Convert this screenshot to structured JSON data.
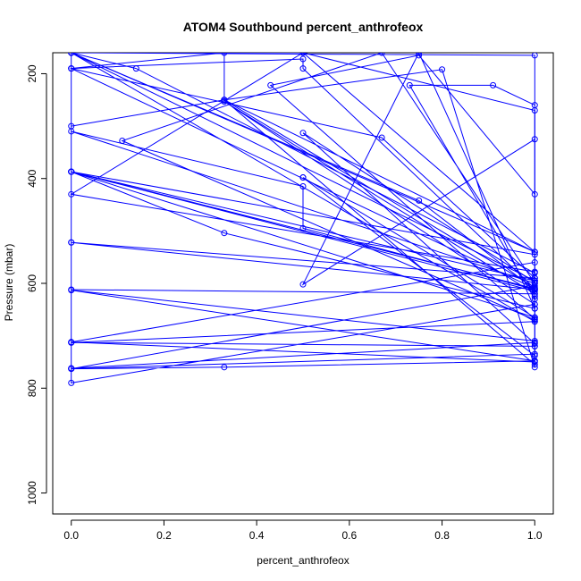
{
  "chart_data": {
    "type": "line",
    "title": "ATOM4 Southbound percent_anthrofeox",
    "xlabel": "percent_anthrofeox",
    "ylabel": "Pressure (mbar)",
    "xlim": [
      -0.04,
      1.04
    ],
    "ylim": [
      1040,
      160
    ],
    "y_reversed": true,
    "grid": false,
    "x_ticks": [
      0.0,
      0.2,
      0.4,
      0.6,
      0.8,
      1.0
    ],
    "x_tick_labels": [
      "0.0",
      "0.2",
      "0.4",
      "0.6",
      "0.8",
      "1.0"
    ],
    "y_ticks": [
      200,
      400,
      600,
      800,
      1000
    ],
    "y_tick_labels": [
      "200",
      "400",
      "600",
      "800",
      "1000"
    ],
    "color": "#0000ff",
    "series": [
      {
        "x": [
          0.0,
          0.0,
          0.33,
          0.33,
          0.0,
          1.0,
          0.5,
          0.5,
          0.0,
          0.67,
          1.0,
          1.0,
          0.0,
          0.5,
          0.5,
          1.0,
          1.0,
          0.0,
          0.33,
          1.0,
          1.0,
          0.0,
          0.0,
          1.0,
          1.0,
          0.0,
          0.0,
          1.0,
          1.0,
          0.0,
          0.0,
          1.0,
          1.0,
          0.0,
          0.5,
          1.0,
          1.0,
          0.0,
          0.0,
          1.0,
          1.0,
          0.0,
          0.0,
          1.0,
          1.0,
          0.0,
          0.0,
          0.33,
          1.0,
          1.0,
          0.0,
          0.0,
          1.0,
          1.0,
          0.0,
          0.0,
          1.0,
          1.0,
          0.33,
          0.33,
          1.0,
          1.0,
          0.0,
          0.0,
          1.0,
          1.0,
          0.0,
          0.14,
          1.0,
          1.0
        ],
        "y": [
          190,
          300,
          250,
          160,
          190,
          610,
          190,
          172,
          190,
          322,
          590,
          600,
          310,
          415,
          495,
          612,
          595,
          387,
          504,
          648,
          720,
          713,
          713,
          673,
          735,
          763,
          762,
          713,
          640,
          790,
          160,
          595,
          578,
          430,
          160,
          270,
          612,
          522,
          522,
          590,
          620,
          612,
          713,
          720,
          605,
          763,
          763,
          760,
          748,
          540,
          160,
          387,
          595,
          610,
          387,
          387,
          545,
          620,
          253,
          253,
          640,
          665,
          387,
          387,
          615,
          673,
          160,
          190,
          580,
          625
        ]
      },
      {
        "x": [
          0.0,
          0.5,
          1.0,
          1.0,
          0.0,
          1.0,
          1.0,
          0.5,
          0.5,
          1.0,
          1.0,
          0.11,
          0.67,
          1.0,
          1.0,
          0.0,
          0.75,
          1.0,
          1.0,
          0.73,
          0.91,
          1.0,
          1.0,
          0.33,
          0.33,
          1.0,
          1.0,
          0.43,
          0.75,
          1.0,
          1.0,
          0.0,
          1.0,
          1.0,
          0.5,
          0.75,
          1.0,
          1.0,
          0.5,
          1.0,
          1.0,
          0.8,
          0.33,
          1.0
        ],
        "y": [
          160,
          160,
          540,
          560,
          712,
          750,
          738,
          398,
          398,
          665,
          670,
          328,
          160,
          600,
          165,
          160,
          442,
          612,
          630,
          222,
          222,
          260,
          540,
          250,
          250,
          608,
          668,
          222,
          165,
          430,
          710,
          613,
          748,
          325,
          602,
          160,
          648,
          598,
          313,
          715,
          760,
          192,
          250,
          755
        ]
      }
    ]
  }
}
